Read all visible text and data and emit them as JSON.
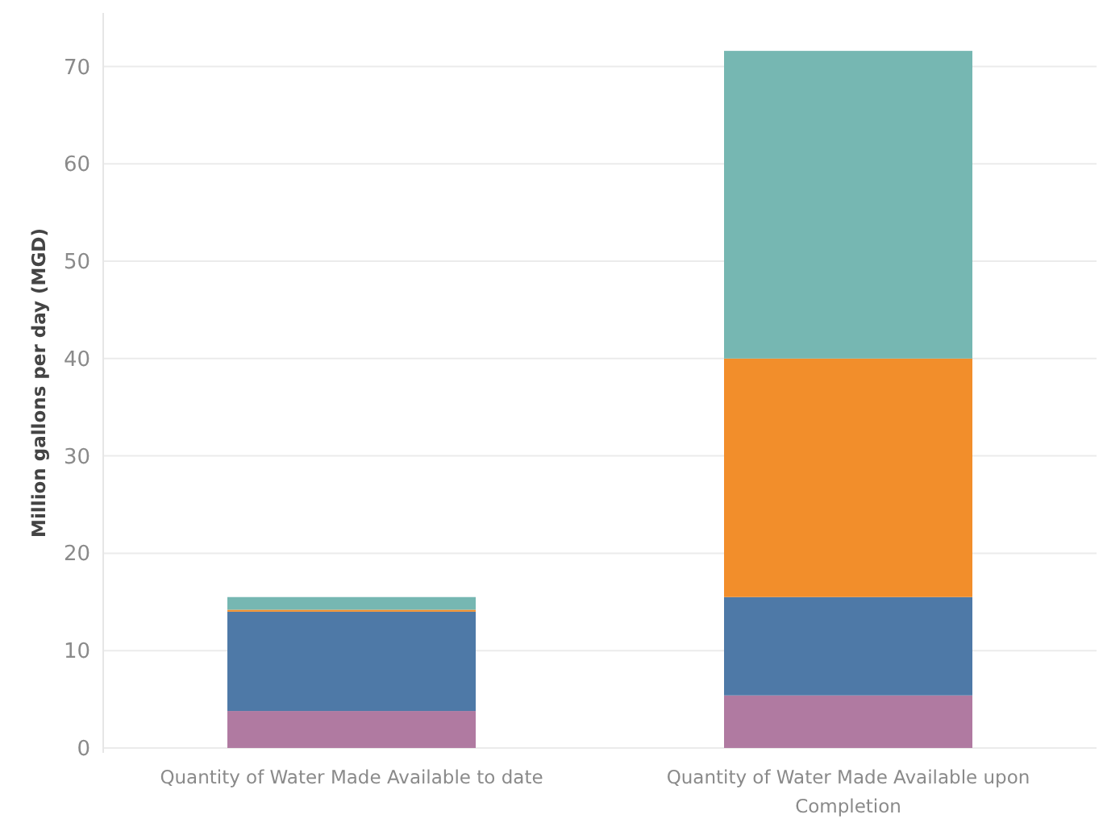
{
  "chart_data": {
    "type": "bar",
    "stacked": true,
    "ylabel": "Million gallons per day (MGD)",
    "categories": [
      "Quantity of Water Made Available to date",
      "Quantity of Water Made Available upon Completion"
    ],
    "series": [
      {
        "color": "#b07aa1",
        "values": [
          3.8,
          5.4
        ]
      },
      {
        "color": "#4e79a7",
        "values": [
          10.2,
          10.1
        ]
      },
      {
        "color": "#f28e2b",
        "values": [
          0.2,
          24.5
        ]
      },
      {
        "color": "#76b7b2",
        "values": [
          1.3,
          31.6
        ]
      }
    ],
    "ylim": [
      -0.5,
      75.5
    ],
    "yticks": [
      0,
      10,
      20,
      30,
      40,
      50,
      60,
      70
    ],
    "grid": "y"
  }
}
